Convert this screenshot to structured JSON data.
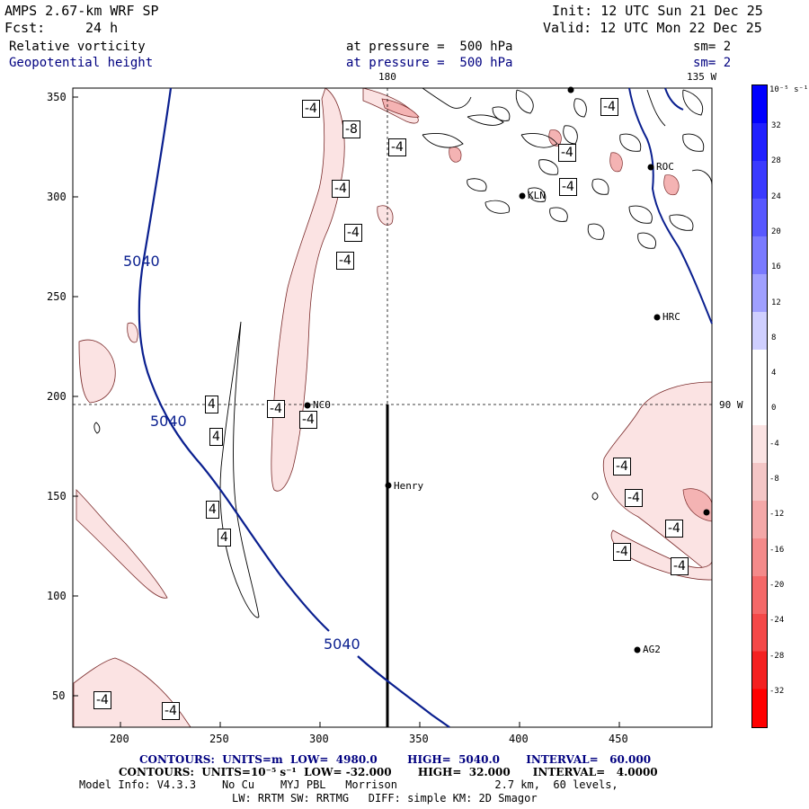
{
  "header": {
    "model": "AMPS 2.67-km WRF SP",
    "fcst_label": "Fcst:",
    "fcst_value": "24 h",
    "init": "Init: 12 UTC Sun 21 Dec 25",
    "valid": "Valid: 12 UTC Mon 22 Dec 25",
    "field1": "Relative vorticity",
    "field1_level": "at pressure =  500 hPa",
    "field1_sm": "sm= 2",
    "field2": "Geopotential height",
    "field2_level": "at pressure =  500 hPa",
    "field2_sm": "sm= 2"
  },
  "map": {
    "x_ticks": [
      "200",
      "250",
      "300",
      "350",
      "400",
      "450"
    ],
    "y_ticks": [
      "350",
      "300",
      "250",
      "200",
      "150",
      "100",
      "50"
    ],
    "meridian_labels": [
      "180",
      "135 W",
      "90 W"
    ],
    "stations": [
      "NCO",
      "Henry",
      "KLN",
      "HRC",
      "AG2",
      "ROC"
    ],
    "height_contour_labels": [
      "5040",
      "5040",
      "5040"
    ],
    "vorticity_labels": [
      "-4",
      "-8",
      "-4",
      "-4",
      "-4",
      "-4",
      "-4",
      "-4",
      "-4",
      "-4",
      "4",
      "4",
      "4",
      "4",
      "-4",
      "-4",
      "-4",
      "-4",
      "-4",
      "-4",
      "-4",
      "-4"
    ]
  },
  "colorbar": {
    "unit": "10⁻⁵ s⁻¹",
    "ticks": [
      "32",
      "28",
      "24",
      "20",
      "16",
      "12",
      "8",
      "4",
      "0",
      "-4",
      "-8",
      "-12",
      "-16",
      "-20",
      "-24",
      "-28",
      "-32"
    ]
  },
  "footer": {
    "line1": "CONTOURS:  UNITS=m  LOW=  4980.0        HIGH=  5040.0       INTERVAL=   60.000",
    "line2": "CONTOURS:  UNITS=10⁻⁵ s⁻¹  LOW= -32.000       HIGH=  32.000      INTERVAL=   4.0000",
    "line3": "Model Info: V4.3.3    No Cu    MYJ PBL   Morrison               2.7 km,  60 levels,",
    "line4": "LW: RRTM SW: RRTMG   DIFF: simple KM: 2D Smagor"
  },
  "colors": {
    "height_contour": "#0a1f8f",
    "neg_vort_light": "#fbe3e3",
    "neg_vort_mid": "#f4b3b3"
  }
}
